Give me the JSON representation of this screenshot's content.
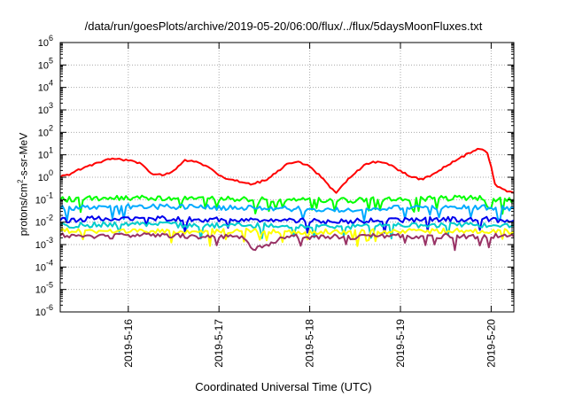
{
  "chart_data": {
    "type": "line",
    "title": "/data/run/goesPlots/archive/2019-05-20/06:00/flux/../flux/5daysMoonFluxes.txt",
    "xlabel": "Coordinated Universal Time (UTC)",
    "ylabel": {
      "pre": "protons/cm",
      "sup": "2",
      "post": "-s-sr-MeV"
    },
    "yscale": "log",
    "ylim": [
      1e-06,
      1000000.0
    ],
    "y_tick_exponents": [
      -6,
      -5,
      -4,
      -3,
      -2,
      -1,
      0,
      1,
      2,
      3,
      4,
      5,
      6
    ],
    "xlim": [
      "2019-05-15T06:00",
      "2019-05-20T06:00"
    ],
    "x_ticks": [
      "2019-5-16",
      "2019-5-17",
      "2019-5-18",
      "2019-5-19",
      "2019-5-20"
    ],
    "grid": true,
    "series": [
      {
        "color": "#ff0000",
        "x": [
          "2019-05-15T06:00",
          "2019-05-15T09:00",
          "2019-05-15T12:00",
          "2019-05-15T15:00",
          "2019-05-15T18:00",
          "2019-05-15T21:00",
          "2019-05-16T00:00",
          "2019-05-16T03:00",
          "2019-05-16T06:00",
          "2019-05-16T09:00",
          "2019-05-16T12:00",
          "2019-05-16T15:00",
          "2019-05-16T18:00",
          "2019-05-16T21:00",
          "2019-05-17T00:00",
          "2019-05-17T03:00",
          "2019-05-17T06:00",
          "2019-05-17T09:00",
          "2019-05-17T12:00",
          "2019-05-17T15:00",
          "2019-05-17T18:00",
          "2019-05-17T21:00",
          "2019-05-18T00:00",
          "2019-05-18T03:00",
          "2019-05-18T06:00",
          "2019-05-18T07:00",
          "2019-05-18T09:00",
          "2019-05-18T12:00",
          "2019-05-18T15:00",
          "2019-05-18T18:00",
          "2019-05-18T21:00",
          "2019-05-19T00:00",
          "2019-05-19T03:00",
          "2019-05-19T06:00",
          "2019-05-19T09:00",
          "2019-05-19T12:00",
          "2019-05-19T15:00",
          "2019-05-19T18:00",
          "2019-05-19T21:00",
          "2019-05-19T23:00",
          "2019-05-20T00:00",
          "2019-05-20T01:00",
          "2019-05-20T03:00",
          "2019-05-20T06:00"
        ],
        "y": [
          1.0,
          1.5,
          2.5,
          4.0,
          6.0,
          6.5,
          5.5,
          4.5,
          1.5,
          1.2,
          2.0,
          6.0,
          5.0,
          3.0,
          1.2,
          0.8,
          0.6,
          0.5,
          0.7,
          1.5,
          4.0,
          5.0,
          3.0,
          1.0,
          0.3,
          0.2,
          0.5,
          1.5,
          4.0,
          5.0,
          3.5,
          2.0,
          1.0,
          0.8,
          1.5,
          3.0,
          6.0,
          12.0,
          18.0,
          12.0,
          3.0,
          0.5,
          0.3,
          0.2
        ]
      },
      {
        "color": "#00ff00",
        "x": [
          "2019-05-15T06:00",
          "2019-05-15T18:00",
          "2019-05-16T06:00",
          "2019-05-16T18:00",
          "2019-05-17T06:00",
          "2019-05-17T18:00",
          "2019-05-18T06:00",
          "2019-05-18T18:00",
          "2019-05-19T06:00",
          "2019-05-19T18:00",
          "2019-05-20T06:00"
        ],
        "y": [
          0.1,
          0.12,
          0.12,
          0.11,
          0.11,
          0.1,
          0.09,
          0.1,
          0.11,
          0.12,
          0.1
        ]
      },
      {
        "color": "#00aaff",
        "x": [
          "2019-05-15T06:00",
          "2019-05-15T18:00",
          "2019-05-16T06:00",
          "2019-05-16T18:00",
          "2019-05-17T06:00",
          "2019-05-17T18:00",
          "2019-05-18T06:00",
          "2019-05-18T18:00",
          "2019-05-19T06:00",
          "2019-05-19T18:00",
          "2019-05-20T06:00"
        ],
        "y": [
          0.04,
          0.05,
          0.05,
          0.045,
          0.045,
          0.04,
          0.035,
          0.04,
          0.045,
          0.05,
          0.04
        ]
      },
      {
        "color": "#0000ee",
        "x": [
          "2019-05-15T06:00",
          "2019-05-15T18:00",
          "2019-05-16T06:00",
          "2019-05-16T18:00",
          "2019-05-17T06:00",
          "2019-05-17T18:00",
          "2019-05-18T06:00",
          "2019-05-18T18:00",
          "2019-05-19T06:00",
          "2019-05-19T18:00",
          "2019-05-20T06:00"
        ],
        "y": [
          0.012,
          0.015,
          0.015,
          0.013,
          0.014,
          0.012,
          0.01,
          0.012,
          0.013,
          0.014,
          0.012
        ]
      },
      {
        "color": "#00cccc",
        "x": [
          "2019-05-15T06:00",
          "2019-05-15T18:00",
          "2019-05-16T06:00",
          "2019-05-16T18:00",
          "2019-05-17T06:00",
          "2019-05-17T18:00",
          "2019-05-18T06:00",
          "2019-05-18T18:00",
          "2019-05-19T06:00",
          "2019-05-19T18:00",
          "2019-05-20T06:00"
        ],
        "y": [
          0.007,
          0.008,
          0.008,
          0.007,
          0.007,
          0.007,
          0.006,
          0.007,
          0.007,
          0.008,
          0.007
        ]
      },
      {
        "color": "#ffff00",
        "x": [
          "2019-05-15T06:00",
          "2019-05-15T18:00",
          "2019-05-16T06:00",
          "2019-05-16T18:00",
          "2019-05-17T06:00",
          "2019-05-17T18:00",
          "2019-05-18T06:00",
          "2019-05-18T18:00",
          "2019-05-19T06:00",
          "2019-05-19T18:00",
          "2019-05-20T06:00"
        ],
        "y": [
          0.004,
          0.004,
          0.004,
          0.0038,
          0.004,
          0.0038,
          0.0037,
          0.0038,
          0.004,
          0.004,
          0.0038
        ]
      },
      {
        "color": "#993366",
        "x": [
          "2019-05-15T06:00",
          "2019-05-15T18:00",
          "2019-05-16T06:00",
          "2019-05-16T18:00",
          "2019-05-17T06:00",
          "2019-05-17T09:00",
          "2019-05-17T18:00",
          "2019-05-18T06:00",
          "2019-05-18T18:00",
          "2019-05-19T06:00",
          "2019-05-19T18:00",
          "2019-05-20T06:00"
        ],
        "y": [
          0.0025,
          0.0024,
          0.0025,
          0.0023,
          0.0024,
          0.0006,
          0.0023,
          0.0022,
          0.0023,
          0.0024,
          0.0024,
          0.0023
        ]
      }
    ]
  }
}
